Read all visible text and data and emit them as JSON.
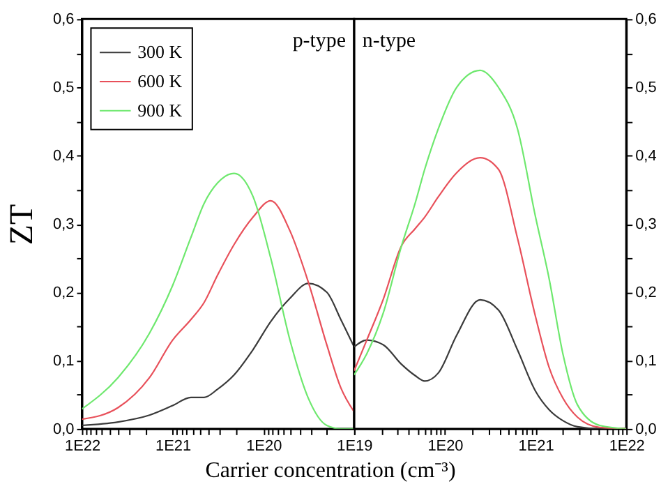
{
  "chart_data": [
    {
      "type": "line",
      "xlabel": "Carrier concentration (cm⁻³)",
      "ylabel": "ZT",
      "annotations": [
        "p-type"
      ],
      "log": "x",
      "grid": false,
      "legend": "top left",
      "marker": "none",
      "line_style": "solid",
      "xlim": [
        1e+22,
        1e+19
      ],
      "ylim": [
        0,
        0.6
      ],
      "xticks": [
        {
          "value": 1e+22,
          "label": "1E22"
        },
        {
          "value": 9e+21,
          "label": null
        },
        {
          "value": 8e+21,
          "label": null
        },
        {
          "value": 7e+21,
          "label": null
        },
        {
          "value": 6e+21,
          "label": null
        },
        {
          "value": 5e+21,
          "label": null
        },
        {
          "value": 4e+21,
          "label": null
        },
        {
          "value": 3e+21,
          "label": null
        },
        {
          "value": 2e+21,
          "label": null
        },
        {
          "value": 1e+21,
          "label": "1E21"
        },
        {
          "value": 9e+20,
          "label": null
        },
        {
          "value": 8e+20,
          "label": null
        },
        {
          "value": 7e+20,
          "label": null
        },
        {
          "value": 6e+20,
          "label": null
        },
        {
          "value": 5e+20,
          "label": null
        },
        {
          "value": 4e+20,
          "label": null
        },
        {
          "value": 3e+20,
          "label": null
        },
        {
          "value": 2e+20,
          "label": null
        },
        {
          "value": 1e+20,
          "label": "1E20"
        },
        {
          "value": 9e+19,
          "label": null
        },
        {
          "value": 8e+19,
          "label": null
        },
        {
          "value": 7e+19,
          "label": null
        },
        {
          "value": 6e+19,
          "label": null
        },
        {
          "value": 5e+19,
          "label": null
        },
        {
          "value": 4e+19,
          "label": null
        },
        {
          "value": 3e+19,
          "label": null
        },
        {
          "value": 2e+19,
          "label": null
        },
        {
          "value": 1e+19,
          "label": null
        }
      ],
      "yticks": [
        {
          "value": 0,
          "label": "0,0"
        },
        {
          "value": 0.05,
          "label": null
        },
        {
          "value": 0.1,
          "label": "0,1"
        },
        {
          "value": 0.15,
          "label": null
        },
        {
          "value": 0.2,
          "label": "0,2"
        },
        {
          "value": 0.25,
          "label": null
        },
        {
          "value": 0.3,
          "label": "0,3"
        },
        {
          "value": 0.35,
          "label": null
        },
        {
          "value": 0.4,
          "label": "0,4"
        },
        {
          "value": 0.45,
          "label": null
        },
        {
          "value": 0.5,
          "label": "0,5"
        },
        {
          "value": 0.55,
          "label": null
        },
        {
          "value": 0.6,
          "label": "0,6"
        }
      ],
      "x": [
        1e+22,
        4e+21,
        1.8e+21,
        1e+21,
        6.3e+20,
        4.5e+20,
        3.2e+20,
        2.1e+20,
        1.3e+20,
        8.3e+19,
        5.1e+19,
        3.2e+19,
        2e+19,
        1.4e+19,
        1e+19
      ],
      "series": [
        {
          "name": "300 K",
          "color": "#3a3a3a",
          "values": [
            0.005,
            0.01,
            0.02,
            0.034,
            0.046,
            0.046,
            0.058,
            0.079,
            0.116,
            0.157,
            0.191,
            0.213,
            0.2,
            0.16,
            0.12
          ]
        },
        {
          "name": "600 K",
          "color": "#e8505a",
          "values": [
            0.014,
            0.031,
            0.075,
            0.13,
            0.16,
            0.185,
            0.225,
            0.27,
            0.31,
            0.334,
            0.29,
            0.215,
            0.123,
            0.06,
            0.025
          ]
        },
        {
          "name": "900 K",
          "color": "#6ee86e",
          "values": [
            0.029,
            0.075,
            0.14,
            0.21,
            0.28,
            0.33,
            0.36,
            0.374,
            0.34,
            0.25,
            0.13,
            0.045,
            0.005,
            0,
            0
          ]
        }
      ]
    },
    {
      "type": "line",
      "annotations": [
        "n-type"
      ],
      "log": "x",
      "grid": false,
      "legend": false,
      "marker": "none",
      "line_style": "solid",
      "xlim": [
        1e+19,
        1e+22
      ],
      "ylim": [
        0,
        0.6
      ],
      "xticks": [
        {
          "value": 1e+19,
          "label": "1E19"
        },
        {
          "value": 2e+19,
          "label": null
        },
        {
          "value": 3e+19,
          "label": null
        },
        {
          "value": 4e+19,
          "label": null
        },
        {
          "value": 5e+19,
          "label": null
        },
        {
          "value": 6e+19,
          "label": null
        },
        {
          "value": 7e+19,
          "label": null
        },
        {
          "value": 8e+19,
          "label": null
        },
        {
          "value": 9e+19,
          "label": null
        },
        {
          "value": 1e+20,
          "label": "1E20"
        },
        {
          "value": 2e+20,
          "label": null
        },
        {
          "value": 3e+20,
          "label": null
        },
        {
          "value": 4e+20,
          "label": null
        },
        {
          "value": 5e+20,
          "label": null
        },
        {
          "value": 6e+20,
          "label": null
        },
        {
          "value": 7e+20,
          "label": null
        },
        {
          "value": 8e+20,
          "label": null
        },
        {
          "value": 9e+20,
          "label": null
        },
        {
          "value": 1e+21,
          "label": "1E21"
        },
        {
          "value": 2e+21,
          "label": null
        },
        {
          "value": 3e+21,
          "label": null
        },
        {
          "value": 4e+21,
          "label": null
        },
        {
          "value": 5e+21,
          "label": null
        },
        {
          "value": 6e+21,
          "label": null
        },
        {
          "value": 7e+21,
          "label": null
        },
        {
          "value": 8e+21,
          "label": null
        },
        {
          "value": 9e+21,
          "label": null
        },
        {
          "value": 1e+22,
          "label": "1E22"
        }
      ],
      "yticks": [
        {
          "value": 0,
          "label": "0,0"
        },
        {
          "value": 0.05,
          "label": null
        },
        {
          "value": 0.1,
          "label": "0,1"
        },
        {
          "value": 0.15,
          "label": null
        },
        {
          "value": 0.2,
          "label": "0,2"
        },
        {
          "value": 0.25,
          "label": null
        },
        {
          "value": 0.3,
          "label": "0,3"
        },
        {
          "value": 0.35,
          "label": null
        },
        {
          "value": 0.4,
          "label": "0,4"
        },
        {
          "value": 0.45,
          "label": null
        },
        {
          "value": 0.5,
          "label": "0,5"
        },
        {
          "value": 0.55,
          "label": null
        },
        {
          "value": 0.6,
          "label": "0,6"
        }
      ],
      "x": [
        1e+19,
        1.38e+19,
        2.1e+19,
        3.3e+19,
        4.7e+19,
        6e+19,
        8.5e+19,
        1.35e+20,
        2.45e+20,
        3.9e+20,
        6.3e+20,
        1e+21,
        1.41e+21,
        2e+21,
        2.9e+21,
        5.1e+21,
        1e+22
      ],
      "series": [
        {
          "color": "#3a3a3a",
          "values": [
            0.12,
            0.13,
            0.123,
            0.095,
            0.078,
            0.07,
            0.082,
            0.137,
            0.189,
            0.174,
            0.116,
            0.055,
            0.028,
            0.012,
            0.003,
            0,
            0
          ]
        },
        {
          "color": "#e8505a",
          "values": [
            0.085,
            0.13,
            0.19,
            0.267,
            0.293,
            0.31,
            0.34,
            0.375,
            0.397,
            0.38,
            0.28,
            0.164,
            0.09,
            0.045,
            0.017,
            0.002,
            0
          ]
        },
        {
          "color": "#6ee86e",
          "values": [
            0.079,
            0.11,
            0.17,
            0.266,
            0.33,
            0.38,
            0.44,
            0.5,
            0.525,
            0.5,
            0.44,
            0.31,
            0.22,
            0.11,
            0.035,
            0.005,
            0
          ]
        }
      ]
    }
  ]
}
